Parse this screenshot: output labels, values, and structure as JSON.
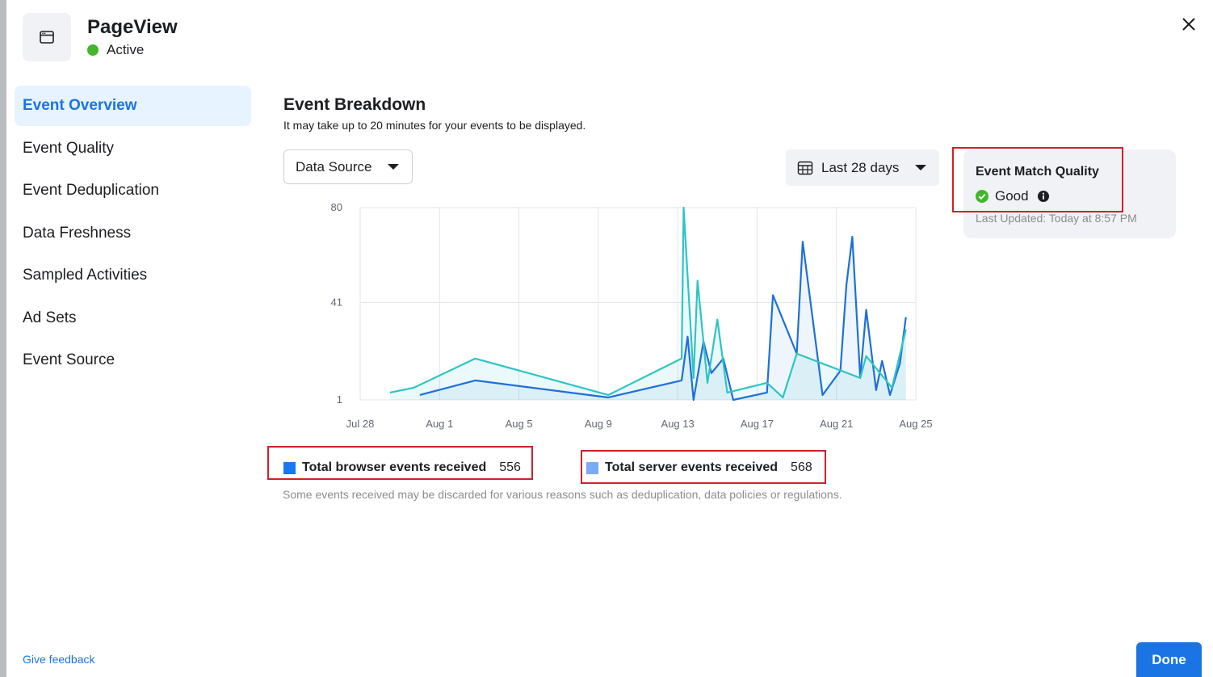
{
  "header": {
    "title": "PageView",
    "status": "Active",
    "status_color": "#42b72a",
    "icon": "browser-window-icon"
  },
  "sidebar": {
    "items": [
      {
        "label": "Event Overview",
        "active": true
      },
      {
        "label": "Event Quality",
        "active": false
      },
      {
        "label": "Event Deduplication",
        "active": false
      },
      {
        "label": "Data Freshness",
        "active": false
      },
      {
        "label": "Sampled Activities",
        "active": false
      },
      {
        "label": "Ad Sets",
        "active": false
      },
      {
        "label": "Event Source",
        "active": false
      }
    ]
  },
  "main": {
    "title": "Event Breakdown",
    "subtitle": "It may take up to 20 minutes for your events to be displayed.",
    "data_source_label": "Data Source",
    "date_range_label": "Last 28 days",
    "event_match_quality": {
      "title": "Event Match Quality",
      "rating": "Good",
      "last_updated": "Last Updated: Today at 8:57 PM"
    },
    "legend": [
      {
        "label": "Total browser events received",
        "count": "556",
        "color": "#1877f2"
      },
      {
        "label": "Total server events received",
        "count": "568",
        "color": "#7baaf7"
      }
    ],
    "footnote": "Some events received may be discarded for various reasons such as deduplication, data policies or regulations."
  },
  "chart_data": {
    "type": "line",
    "x_tick_labels": [
      "Jul 28",
      "Aug 1",
      "Aug 5",
      "Aug 9",
      "Aug 13",
      "Aug 17",
      "Aug 21",
      "Aug 25"
    ],
    "y_tick_labels": [
      "80",
      "41",
      "1"
    ],
    "ylim": [
      1,
      80
    ],
    "xlim_days": [
      0,
      28
    ],
    "grid": true,
    "series": [
      {
        "name": "Total browser events received",
        "color": "#1e6fd9",
        "x": [
          3,
          5.8,
          12.5,
          16.2,
          16.5,
          16.8,
          17.3,
          17.7,
          18.3,
          18.8,
          20.5,
          20.8,
          22.0,
          22.3,
          23.3,
          24.2,
          24.5,
          24.8,
          25.2,
          25.5,
          26.0,
          26.3,
          26.7,
          27.2,
          27.5
        ],
        "y": [
          3,
          9,
          2,
          9,
          27,
          1,
          25,
          12,
          18,
          1,
          4,
          44,
          20,
          66,
          3,
          13,
          48,
          68,
          10,
          38,
          5,
          17,
          3,
          16,
          35
        ]
      },
      {
        "name": "Total server events received",
        "color": "#2ec4c4",
        "x": [
          1.5,
          2.7,
          5.8,
          12.5,
          16.2,
          16.3,
          16.8,
          17.0,
          17.5,
          18.0,
          18.5,
          20.5,
          21.3,
          22.0,
          25.2,
          25.5,
          26.8,
          27.5
        ],
        "y": [
          4,
          6,
          18,
          3,
          18,
          80,
          10,
          50,
          8,
          34,
          4,
          8,
          2,
          20,
          10,
          19,
          6,
          30
        ]
      }
    ]
  }
}
